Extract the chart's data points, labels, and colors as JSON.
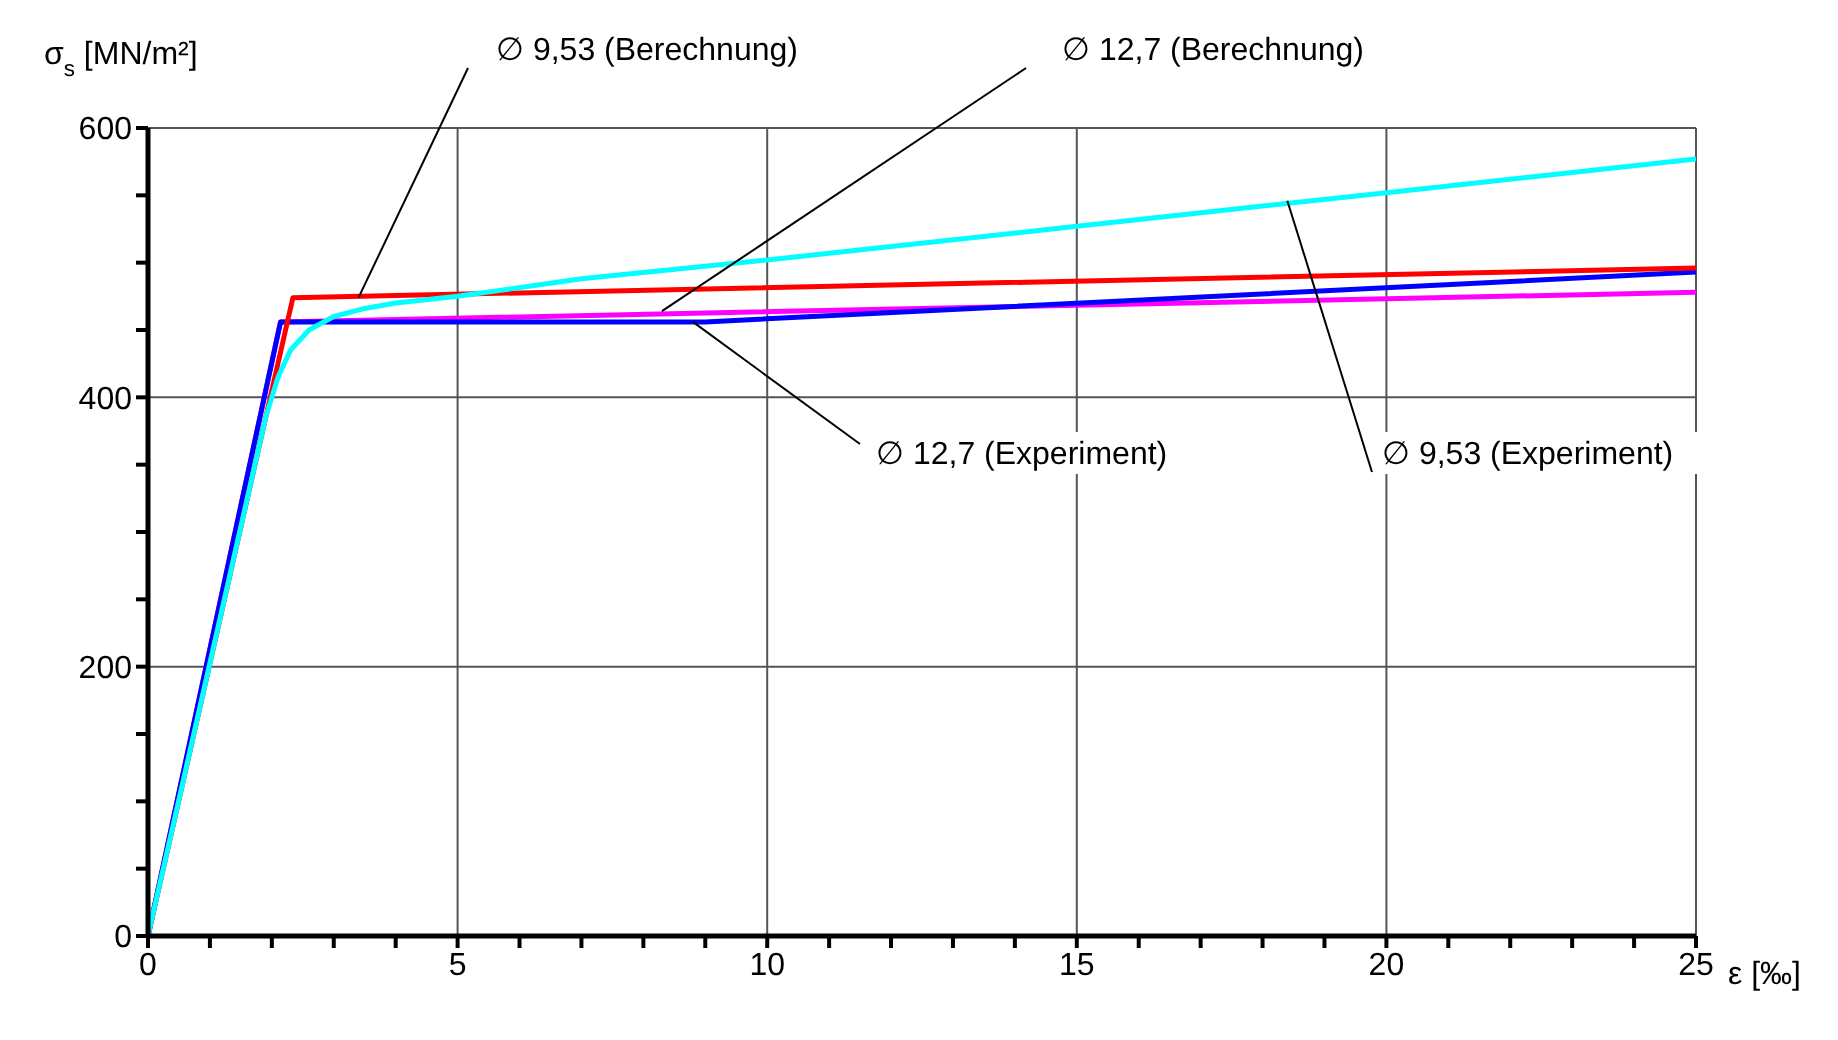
{
  "chart_data": {
    "type": "line",
    "xlabel": "ε [‰]",
    "ylabel": "σ$_{s}$ [MN/m²]",
    "xlim": [
      0,
      25
    ],
    "ylim": [
      0,
      600
    ],
    "xticks": [
      0,
      {
        "value": 1,
        "label": null
      },
      {
        "value": 2,
        "label": null
      },
      {
        "value": 3,
        "label": null
      },
      {
        "value": 4,
        "label": null
      },
      5,
      {
        "value": 6,
        "label": null
      },
      {
        "value": 7,
        "label": null
      },
      {
        "value": 8,
        "label": null
      },
      {
        "value": 9,
        "label": null
      },
      10,
      {
        "value": 11,
        "label": null
      },
      {
        "value": 12,
        "label": null
      },
      {
        "value": 13,
        "label": null
      },
      {
        "value": 14,
        "label": null
      },
      15,
      {
        "value": 16,
        "label": null
      },
      {
        "value": 17,
        "label": null
      },
      {
        "value": 18,
        "label": null
      },
      {
        "value": 19,
        "label": null
      },
      20,
      {
        "value": 21,
        "label": null
      },
      {
        "value": 22,
        "label": null
      },
      {
        "value": 23,
        "label": null
      },
      {
        "value": 24,
        "label": null
      },
      25
    ],
    "yticks": [
      0,
      {
        "value": 50,
        "label": null
      },
      {
        "value": 100,
        "label": null
      },
      {
        "value": 150,
        "label": null
      },
      200,
      {
        "value": 250,
        "label": null
      },
      {
        "value": 300,
        "label": null
      },
      {
        "value": 350,
        "label": null
      },
      400,
      {
        "value": 450,
        "label": null
      },
      {
        "value": 500,
        "label": null
      },
      {
        "value": 550,
        "label": null
      },
      600
    ],
    "grid": true,
    "marker": "none",
    "line_style": "solid",
    "series": [
      {
        "color": "#ff00ff",
        "x": [
          0,
          2.14,
          25
        ],
        "values": [
          0,
          456,
          478
        ]
      },
      {
        "color": "#0000ff",
        "x": [
          0,
          2.14,
          9,
          25
        ],
        "values": [
          0,
          456,
          456,
          493
        ]
      },
      {
        "color": "#ff0000",
        "x": [
          0,
          2.34,
          25
        ],
        "values": [
          0,
          474,
          496
        ]
      },
      {
        "color": "#00ffff",
        "x": [
          0,
          1.9,
          2.1,
          2.3,
          2.6,
          3,
          3.5,
          4,
          5,
          7,
          10,
          15,
          20,
          25
        ],
        "values": [
          0,
          385,
          415,
          435,
          450,
          460,
          466,
          470,
          475,
          488,
          502,
          527,
          552,
          577
        ]
      }
    ],
    "annotations": [
      {
        "text": "∅ 9,53 (Berechnung)",
        "x": 3.4,
        "y": 474
      },
      {
        "text": "∅ 12,7 (Berechnung)",
        "x": 8.3,
        "y": 464
      },
      {
        "text": "∅ 12,7 (Experiment)",
        "x": 8.8,
        "y": 456
      },
      {
        "text": "∅ 9,53 (Experiment)",
        "x": 18.4,
        "y": 546
      }
    ]
  }
}
